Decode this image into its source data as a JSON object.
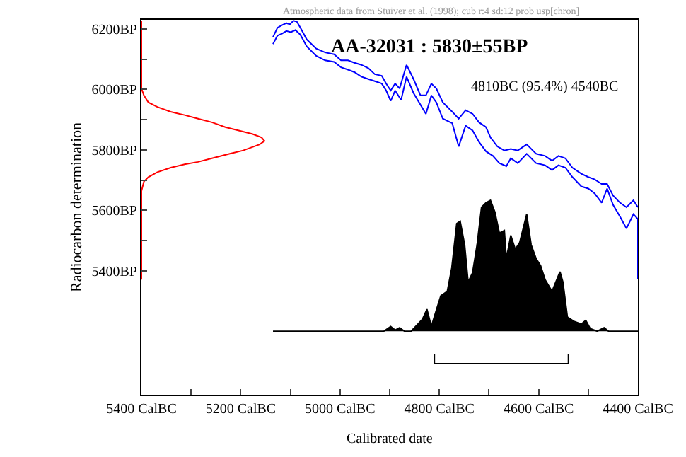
{
  "chart_data": {
    "type": "line",
    "title": "AA-32031 : 5830±55BP",
    "xlabel": "Calibrated date",
    "ylabel": "Radiocarbon determination",
    "annotations": [
      "Atmospheric data from Stuiver et al. (1998); cub r:4 sd:12 prob usp[chron]",
      "4810BC (95.4%) 4540BC"
    ],
    "xlim": [
      5400,
      4400
    ],
    "xticks": [
      {
        "value": 5400,
        "label": "5400 CalBC"
      },
      {
        "value": 5300,
        "label": null
      },
      {
        "value": 5200,
        "label": "5200 CalBC"
      },
      {
        "value": 5100,
        "label": null
      },
      {
        "value": 5000,
        "label": "5000 CalBC"
      },
      {
        "value": 4900,
        "label": null
      },
      {
        "value": 4800,
        "label": "4800 CalBC"
      },
      {
        "value": 4700,
        "label": null
      },
      {
        "value": 4600,
        "label": "4600 CalBC"
      },
      {
        "value": 4500,
        "label": null
      },
      {
        "value": 4400,
        "label": "4400 CalBC"
      }
    ],
    "ylim": [
      4990,
      6230
    ],
    "yticks": [
      {
        "value": 5400,
        "label": "5400BP"
      },
      {
        "value": 5500,
        "label": null
      },
      {
        "value": 5600,
        "label": "5600BP"
      },
      {
        "value": 5700,
        "label": null
      },
      {
        "value": 5800,
        "label": "5800BP"
      },
      {
        "value": 5900,
        "label": null
      },
      {
        "value": 6000,
        "label": "6000BP"
      },
      {
        "value": 6100,
        "label": null
      },
      {
        "value": 6200,
        "label": "6200BP"
      }
    ],
    "grid": false,
    "series": [
      {
        "color": "#0000ff",
        "x": [
          5135,
          5126,
          5117,
          5108,
          5101,
          5094,
          5087,
          5080,
          5067,
          5048,
          5030,
          5012,
          4998,
          4984,
          4971,
          4957,
          4943,
          4930,
          4916,
          4907,
          4898,
          4889,
          4880,
          4866,
          4852,
          4838,
          4827,
          4816,
          4806,
          4793,
          4774,
          4761,
          4747,
          4733,
          4720,
          4706,
          4697,
          4683,
          4669,
          4656,
          4642,
          4624,
          4605,
          4587,
          4573,
          4560,
          4546,
          4532,
          4514,
          4500,
          4487,
          4473,
          4462,
          4450,
          4436,
          4423,
          4409,
          4400
        ],
        "values": [
          6173,
          6204,
          6212,
          6219,
          6215,
          6227,
          6224,
          6204,
          6165,
          6135,
          6122,
          6116,
          6096,
          6096,
          6088,
          6081,
          6070,
          6050,
          6045,
          6019,
          5996,
          6019,
          6003,
          6081,
          6034,
          5980,
          5980,
          6019,
          6003,
          5957,
          5926,
          5903,
          5931,
          5919,
          5891,
          5875,
          5841,
          5811,
          5798,
          5803,
          5798,
          5818,
          5787,
          5780,
          5764,
          5780,
          5772,
          5741,
          5721,
          5710,
          5702,
          5687,
          5687,
          5649,
          5625,
          5610,
          5633,
          5610
        ]
      },
      {
        "color": "#0000ff",
        "x": [
          5135,
          5126,
          5117,
          5108,
          5099,
          5090,
          5080,
          5067,
          5048,
          5030,
          5012,
          4998,
          4984,
          4971,
          4957,
          4943,
          4930,
          4916,
          4907,
          4898,
          4889,
          4877,
          4866,
          4852,
          4838,
          4827,
          4816,
          4806,
          4793,
          4774,
          4761,
          4747,
          4733,
          4720,
          4706,
          4692,
          4679,
          4665,
          4656,
          4642,
          4624,
          4605,
          4587,
          4573,
          4560,
          4546,
          4532,
          4514,
          4500,
          4487,
          4473,
          4462,
          4450,
          4436,
          4423,
          4409,
          4400,
          4400
        ],
        "values": [
          6150,
          6178,
          6184,
          6193,
          6189,
          6196,
          6181,
          6142,
          6111,
          6096,
          6091,
          6073,
          6065,
          6057,
          6042,
          6034,
          6027,
          6019,
          5996,
          5962,
          5996,
          5965,
          6042,
          5988,
          5949,
          5919,
          5980,
          5957,
          5903,
          5888,
          5811,
          5880,
          5864,
          5826,
          5795,
          5780,
          5756,
          5746,
          5772,
          5756,
          5787,
          5756,
          5749,
          5733,
          5749,
          5741,
          5710,
          5679,
          5672,
          5656,
          5625,
          5672,
          5618,
          5579,
          5540,
          5587,
          5571,
          5372
        ]
      },
      {
        "color": "#ff0000",
        "x": [
          5400,
          5400,
          5395,
          5386,
          5368,
          5341,
          5313,
          5286,
          5258,
          5231,
          5204,
          5176,
          5158,
          5152,
          5162,
          5195,
          5222,
          5258,
          5286,
          5313,
          5341,
          5368,
          5386,
          5395,
          5400,
          5400
        ],
        "values": [
          6227,
          6003,
          5980,
          5957,
          5942,
          5926,
          5915,
          5903,
          5891,
          5875,
          5864,
          5852,
          5841,
          5829,
          5818,
          5798,
          5787,
          5772,
          5760,
          5752,
          5741,
          5726,
          5710,
          5695,
          5664,
          5371
        ]
      },
      {
        "type": "area",
        "color": "#000000",
        "x": [
          5135,
          4912,
          4898,
          4889,
          4880,
          4870,
          4857,
          4843,
          4834,
          4825,
          4816,
          4806,
          4797,
          4784,
          4775,
          4765,
          4758,
          4749,
          4742,
          4733,
          4724,
          4715,
          4706,
          4697,
          4688,
          4679,
          4669,
          4665,
          4656,
          4647,
          4638,
          4624,
          4615,
          4605,
          4596,
          4587,
          4573,
          4557,
          4551,
          4542,
          4528,
          4514,
          4505,
          4496,
          4482,
          4468,
          4459,
          4400
        ],
        "values": [
          5200,
          5200,
          5216,
          5204,
          5212,
          5200,
          5200,
          5224,
          5240,
          5273,
          5216,
          5270,
          5317,
          5332,
          5409,
          5556,
          5564,
          5486,
          5363,
          5394,
          5486,
          5610,
          5625,
          5633,
          5594,
          5525,
          5533,
          5440,
          5517,
          5471,
          5494,
          5587,
          5486,
          5440,
          5417,
          5371,
          5332,
          5397,
          5363,
          5247,
          5232,
          5224,
          5236,
          5209,
          5200,
          5212,
          5200,
          5200
        ]
      },
      {
        "color": "#000000",
        "x": [
          4810,
          4810,
          4540,
          4540
        ],
        "values": [
          5124,
          5093,
          5093,
          5124
        ]
      }
    ]
  }
}
